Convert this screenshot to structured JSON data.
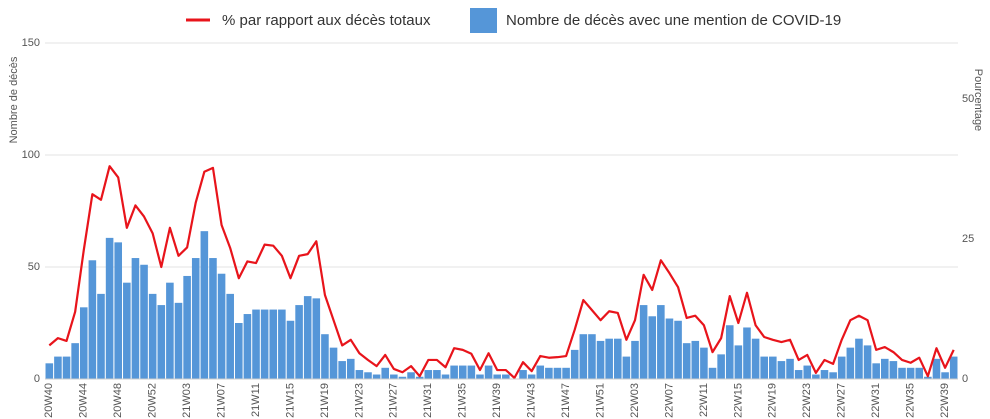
{
  "chart_data": {
    "type": "combo",
    "ylabel": "Nombre de décès",
    "y2label": "Pourcentage",
    "categories": [
      "20W40",
      null,
      null,
      null,
      "20W44",
      null,
      null,
      null,
      "20W48",
      null,
      null,
      null,
      "20W52",
      null,
      null,
      null,
      "21W03",
      null,
      null,
      null,
      "21W07",
      null,
      null,
      null,
      "21W11",
      null,
      null,
      null,
      "21W15",
      null,
      null,
      null,
      "21W19",
      null,
      null,
      null,
      "21W23",
      null,
      null,
      null,
      "21W27",
      null,
      null,
      null,
      "21W31",
      null,
      null,
      null,
      "21W35",
      null,
      null,
      null,
      "21W39",
      null,
      null,
      null,
      "21W43",
      null,
      null,
      null,
      "21W47",
      null,
      null,
      null,
      "21W51",
      null,
      null,
      null,
      "22W03",
      null,
      null,
      null,
      "22W07",
      null,
      null,
      null,
      "22W11",
      null,
      null,
      null,
      "22W15",
      null,
      null,
      null,
      "22W19",
      null,
      null,
      null,
      "22W23",
      null,
      null,
      null,
      "22W27",
      null,
      null,
      null,
      "22W31",
      null,
      null,
      null,
      "22W35",
      null,
      null,
      null,
      "22W39",
      null
    ],
    "series": [
      {
        "name": "% par rapport aux décès totaux",
        "type": "line",
        "axis": "y2",
        "color": "#e8141b",
        "values": [
          6,
          7.3,
          6.8,
          12,
          23,
          33,
          32,
          38,
          36,
          27,
          31,
          29,
          26,
          20,
          27,
          22,
          23.5,
          31.5,
          37,
          37.7,
          27.5,
          23.4,
          18,
          21,
          20.7,
          24,
          23.8,
          22,
          18,
          22,
          22.3,
          24.6,
          15,
          10.5,
          6,
          7,
          4.6,
          3.4,
          2.3,
          4.3,
          1.8,
          1.2,
          2.3,
          0.5,
          3.4,
          3.4,
          2.1,
          5.5,
          5.2,
          4.5,
          1.6,
          4.6,
          1.6,
          1.6,
          0.2,
          3,
          1.4,
          4.1,
          3.8,
          3.9,
          4.1,
          8.8,
          14.1,
          12.3,
          10.5,
          12.1,
          11.8,
          7,
          10.5,
          18.6,
          15.9,
          21.2,
          18.9,
          16.4,
          10.9,
          11.3,
          9.6,
          4.8,
          7.3,
          14.8,
          10,
          15.4,
          9.6,
          7.5,
          7,
          6.6,
          7,
          3.4,
          4.3,
          1.1,
          3.4,
          2.7,
          7,
          10.5,
          11.3,
          10.5,
          5.2,
          5.7,
          4.8,
          3.4,
          2.9,
          3.8,
          0.5,
          5.5,
          2,
          5.2
        ]
      },
      {
        "name": "Nombre de décès avec une mention de COVID-19",
        "type": "bar",
        "color": "#5596d8",
        "values": [
          7,
          10,
          10,
          16,
          32,
          53,
          38,
          63,
          61,
          43,
          54,
          51,
          38,
          33,
          43,
          34,
          46,
          54,
          66,
          54,
          47,
          38,
          25,
          29,
          31,
          31,
          31,
          31,
          26,
          33,
          37,
          36,
          20,
          14,
          8,
          9,
          4,
          3,
          2,
          5,
          2,
          1,
          3,
          1,
          4,
          4,
          2,
          6,
          6,
          6,
          2,
          6,
          2,
          2,
          0,
          4,
          2,
          6,
          5,
          5,
          5,
          13,
          20,
          20,
          17,
          18,
          18,
          10,
          17,
          33,
          28,
          33,
          27,
          26,
          16,
          17,
          14,
          5,
          11,
          24,
          15,
          23,
          18,
          10,
          10,
          8,
          9,
          4,
          6,
          2,
          4,
          3,
          10,
          14,
          18,
          15,
          7,
          9,
          8,
          5,
          5,
          5,
          1,
          9,
          3,
          10
        ]
      }
    ],
    "ylim": [
      0,
      150
    ],
    "yticks": [
      0,
      50,
      100,
      150
    ],
    "y2lim": [
      0,
      60
    ],
    "y2ticks": [
      0,
      25,
      50
    ],
    "grid": true
  }
}
